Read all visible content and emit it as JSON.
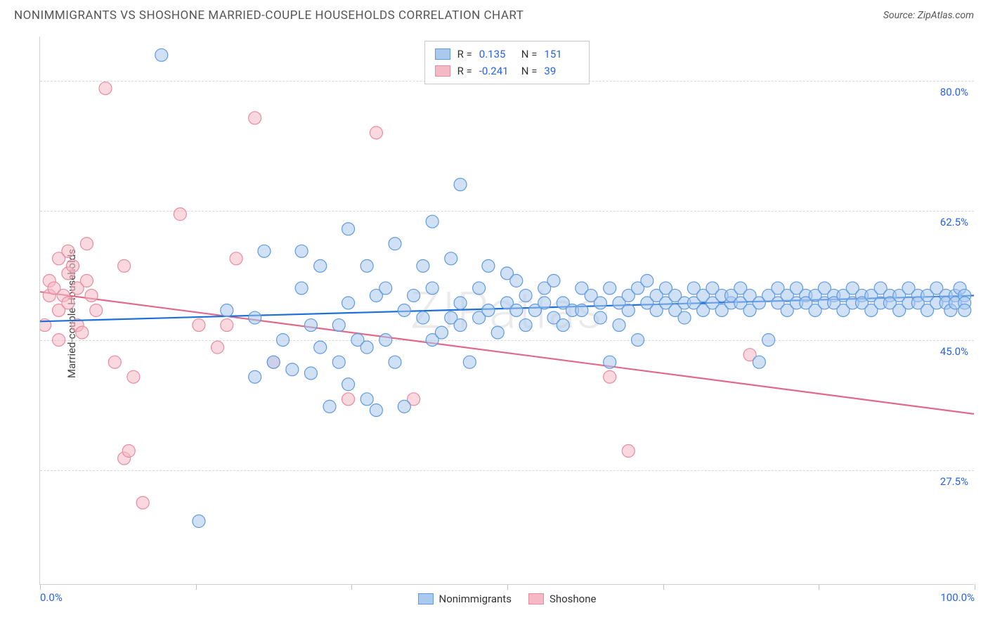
{
  "header": {
    "title": "NONIMMIGRANTS VS SHOSHONE MARRIED-COUPLE HOUSEHOLDS CORRELATION CHART",
    "source_label": "Source: ZipAtlas.com"
  },
  "chart": {
    "type": "scatter",
    "ylabel": "Married-couple Households",
    "watermark": "ZIPatlas",
    "background_color": "#ffffff",
    "grid_color": "#d8d8d8",
    "axis_color": "#d0d0d0",
    "tick_label_color": "#2563eb",
    "xlim": [
      0,
      100
    ],
    "ylim": [
      12,
      86
    ],
    "x_ticks": [
      0,
      16.67,
      33.33,
      50,
      66.67,
      83.33,
      100
    ],
    "x_tick_labels": [
      "0.0%",
      "",
      "",
      "",
      "",
      "",
      "100.0%"
    ],
    "y_gridlines": [
      27.5,
      45.0,
      62.5,
      80.0
    ],
    "y_tick_labels": [
      "27.5%",
      "45.0%",
      "62.5%",
      "80.0%"
    ],
    "series": {
      "nonimmigrants": {
        "label": "Nonimmigrants",
        "fill_color": "#a9c9ef",
        "stroke_color": "#5f9ae0",
        "fill_opacity": 0.55,
        "line_color": "#1d6fd8",
        "line_width": 2.2,
        "marker_radius": 9,
        "trend": {
          "x1": 0,
          "y1": 47.5,
          "x2": 100,
          "y2": 51.0
        },
        "R": "0.135",
        "N": "151",
        "points": [
          [
            13,
            83.5
          ],
          [
            17,
            20.5
          ],
          [
            20,
            49
          ],
          [
            23,
            48
          ],
          [
            23,
            40
          ],
          [
            24,
            57
          ],
          [
            25,
            42
          ],
          [
            26,
            45
          ],
          [
            27,
            41
          ],
          [
            28,
            57
          ],
          [
            28,
            52
          ],
          [
            29,
            47
          ],
          [
            29,
            40.5
          ],
          [
            30,
            55
          ],
          [
            30,
            44
          ],
          [
            31,
            36
          ],
          [
            32,
            47
          ],
          [
            32,
            42
          ],
          [
            33,
            60
          ],
          [
            33,
            50
          ],
          [
            33,
            39
          ],
          [
            34,
            45
          ],
          [
            35,
            55
          ],
          [
            35,
            44
          ],
          [
            35,
            37
          ],
          [
            36,
            51
          ],
          [
            36,
            35.5
          ],
          [
            37,
            52
          ],
          [
            37,
            45
          ],
          [
            38,
            58
          ],
          [
            38,
            42
          ],
          [
            39,
            49
          ],
          [
            39,
            36
          ],
          [
            40,
            51
          ],
          [
            41,
            48
          ],
          [
            41,
            55
          ],
          [
            42,
            61
          ],
          [
            42,
            52
          ],
          [
            42,
            45
          ],
          [
            43,
            46
          ],
          [
            44,
            48
          ],
          [
            44,
            56
          ],
          [
            45,
            66
          ],
          [
            45,
            50
          ],
          [
            45,
            47
          ],
          [
            46,
            42
          ],
          [
            47,
            52
          ],
          [
            47,
            48
          ],
          [
            48,
            55
          ],
          [
            48,
            49
          ],
          [
            49,
            46
          ],
          [
            50,
            54
          ],
          [
            50,
            50
          ],
          [
            51,
            53
          ],
          [
            51,
            49
          ],
          [
            52,
            51
          ],
          [
            52,
            47
          ],
          [
            53,
            49
          ],
          [
            54,
            52
          ],
          [
            54,
            50
          ],
          [
            55,
            48
          ],
          [
            55,
            53
          ],
          [
            56,
            50
          ],
          [
            56,
            47
          ],
          [
            57,
            49
          ],
          [
            58,
            52
          ],
          [
            58,
            49
          ],
          [
            59,
            51
          ],
          [
            60,
            50
          ],
          [
            60,
            48
          ],
          [
            61,
            52
          ],
          [
            61,
            42
          ],
          [
            62,
            50
          ],
          [
            62,
            47
          ],
          [
            63,
            51
          ],
          [
            63,
            49
          ],
          [
            64,
            52
          ],
          [
            64,
            45
          ],
          [
            65,
            50
          ],
          [
            65,
            53
          ],
          [
            66,
            51
          ],
          [
            66,
            49
          ],
          [
            67,
            50
          ],
          [
            67,
            52
          ],
          [
            68,
            49
          ],
          [
            68,
            51
          ],
          [
            69,
            50
          ],
          [
            69,
            48
          ],
          [
            70,
            52
          ],
          [
            70,
            50
          ],
          [
            71,
            51
          ],
          [
            71,
            49
          ],
          [
            72,
            50
          ],
          [
            72,
            52
          ],
          [
            73,
            51
          ],
          [
            73,
            49
          ],
          [
            74,
            50
          ],
          [
            74,
            51
          ],
          [
            75,
            52
          ],
          [
            75,
            50
          ],
          [
            76,
            51
          ],
          [
            76,
            49
          ],
          [
            77,
            42
          ],
          [
            77,
            50
          ],
          [
            78,
            51
          ],
          [
            78,
            45
          ],
          [
            79,
            50
          ],
          [
            79,
            52
          ],
          [
            80,
            51
          ],
          [
            80,
            49
          ],
          [
            81,
            50
          ],
          [
            81,
            52
          ],
          [
            82,
            51
          ],
          [
            82,
            50
          ],
          [
            83,
            49
          ],
          [
            83,
            51
          ],
          [
            84,
            50
          ],
          [
            84,
            52
          ],
          [
            85,
            51
          ],
          [
            85,
            50
          ],
          [
            86,
            49
          ],
          [
            86,
            51
          ],
          [
            87,
            50
          ],
          [
            87,
            52
          ],
          [
            88,
            51
          ],
          [
            88,
            50
          ],
          [
            89,
            51
          ],
          [
            89,
            49
          ],
          [
            90,
            50
          ],
          [
            90,
            52
          ],
          [
            91,
            51
          ],
          [
            91,
            50
          ],
          [
            92,
            49
          ],
          [
            92,
            51
          ],
          [
            93,
            50
          ],
          [
            93,
            52
          ],
          [
            94,
            51
          ],
          [
            94,
            50
          ],
          [
            95,
            51
          ],
          [
            95,
            49
          ],
          [
            96,
            50
          ],
          [
            96,
            52
          ],
          [
            97,
            51
          ],
          [
            97,
            50
          ],
          [
            97.5,
            49
          ],
          [
            98,
            51
          ],
          [
            98,
            50
          ],
          [
            98.5,
            52
          ],
          [
            99,
            51
          ],
          [
            99,
            50
          ],
          [
            99,
            49
          ]
        ]
      },
      "shoshone": {
        "label": "Shoshone",
        "fill_color": "#f5b8c5",
        "stroke_color": "#e88ba0",
        "fill_opacity": 0.55,
        "line_color": "#e06a8a",
        "line_width": 2.2,
        "marker_radius": 9,
        "trend": {
          "x1": 0,
          "y1": 51.5,
          "x2": 100,
          "y2": 35.0
        },
        "R": "-0.241",
        "N": "39",
        "points": [
          [
            0.5,
            47
          ],
          [
            1,
            53
          ],
          [
            1,
            51
          ],
          [
            1.5,
            52
          ],
          [
            2,
            49
          ],
          [
            2,
            56
          ],
          [
            2,
            45
          ],
          [
            2.5,
            51
          ],
          [
            3,
            54
          ],
          [
            3,
            57
          ],
          [
            3,
            50
          ],
          [
            3.5,
            55
          ],
          [
            4,
            52
          ],
          [
            4,
            47
          ],
          [
            4.5,
            46
          ],
          [
            5,
            53
          ],
          [
            5,
            58
          ],
          [
            5.5,
            51
          ],
          [
            6,
            49
          ],
          [
            7,
            79
          ],
          [
            8,
            42
          ],
          [
            9,
            55
          ],
          [
            9,
            29
          ],
          [
            9.5,
            30
          ],
          [
            10,
            40
          ],
          [
            11,
            23
          ],
          [
            15,
            62
          ],
          [
            17,
            47
          ],
          [
            19,
            44
          ],
          [
            20,
            47
          ],
          [
            21,
            56
          ],
          [
            23,
            75
          ],
          [
            25,
            42
          ],
          [
            33,
            37
          ],
          [
            36,
            73
          ],
          [
            40,
            37
          ],
          [
            61,
            40
          ],
          [
            63,
            30
          ],
          [
            76,
            43
          ]
        ]
      }
    },
    "stats_box": {
      "border_color": "#c8c8c8",
      "rows": [
        {
          "swatch_fill": "#a9c9ef",
          "swatch_stroke": "#5f9ae0",
          "R_label": "R =",
          "R": "0.135",
          "N_label": "N =",
          "N": "151"
        },
        {
          "swatch_fill": "#f5b8c5",
          "swatch_stroke": "#e88ba0",
          "R_label": "R =",
          "R": "-0.241",
          "N_label": "N =",
          "N": "39"
        }
      ]
    },
    "bottom_legend": [
      {
        "swatch_fill": "#a9c9ef",
        "swatch_stroke": "#5f9ae0",
        "label": "Nonimmigrants"
      },
      {
        "swatch_fill": "#f5b8c5",
        "swatch_stroke": "#e88ba0",
        "label": "Shoshone"
      }
    ]
  }
}
